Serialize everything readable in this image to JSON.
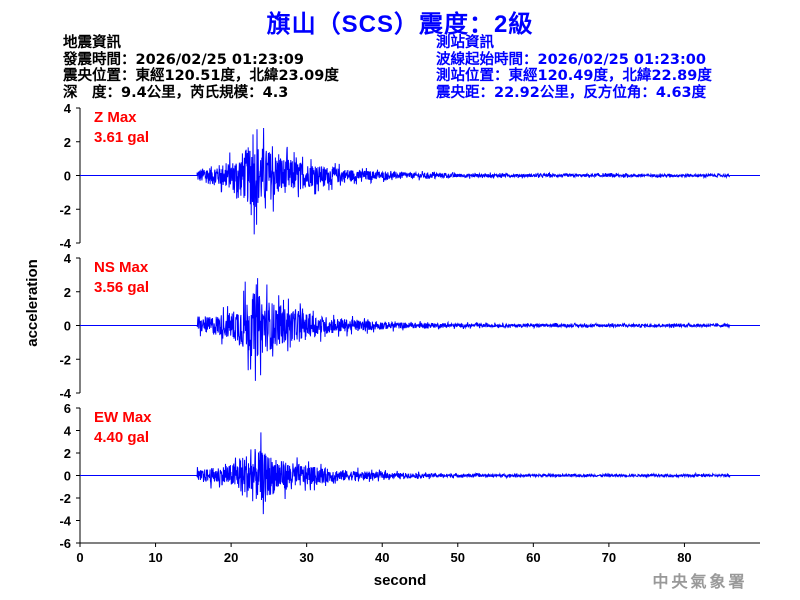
{
  "title": "旗山（SCS）震度：2級",
  "earthquake_info": {
    "heading": "地震資訊",
    "origin_time": "發震時間：2026/02/25 01:23:09",
    "epicenter": "震央位置：東經120.51度，北緯23.09度",
    "depth_magnitude": "深　度：9.4公里，芮氏規模：4.3"
  },
  "station_info": {
    "heading": "測站資訊",
    "record_start": "波線起始時間：2026/02/25 01:23:00",
    "station_location": "測站位置：東經120.49度，北緯22.89度",
    "distance_azimuth": "震央距：22.92公里，反方位角：4.63度"
  },
  "logo_text": "中央氣象署",
  "chart_data": {
    "type": "line",
    "xlabel": "second",
    "ylabel": "acceleration",
    "xlim": [
      0,
      90
    ],
    "xticks": [
      "0",
      "10",
      "20",
      "30",
      "40",
      "50",
      "60",
      "70",
      "80"
    ],
    "line_color": "#0000ff",
    "label_color": "#ff0000",
    "panels": [
      {
        "component": "Z",
        "label": "Z Max",
        "max_label": "3.61 gal",
        "max": 3.61,
        "ylim": [
          -4,
          4
        ],
        "yticks": [
          "4",
          "2",
          "0",
          "-2",
          "-4"
        ],
        "onset_s": 15.5,
        "peak_s": 23,
        "end_s": 86
      },
      {
        "component": "NS",
        "label": "NS Max",
        "max_label": "3.56 gal",
        "max": 3.56,
        "ylim": [
          -4,
          4
        ],
        "yticks": [
          "4",
          "2",
          "0",
          "-2",
          "-4"
        ],
        "onset_s": 15.5,
        "peak_s": 23,
        "end_s": 86
      },
      {
        "component": "EW",
        "label": "EW Max",
        "max_label": "4.40 gal",
        "max": 4.4,
        "ylim": [
          -6,
          6
        ],
        "yticks": [
          "6",
          "4",
          "2",
          "0",
          "-2",
          "-4",
          "-6"
        ],
        "onset_s": 15.5,
        "peak_s": 23,
        "end_s": 86
      }
    ]
  }
}
